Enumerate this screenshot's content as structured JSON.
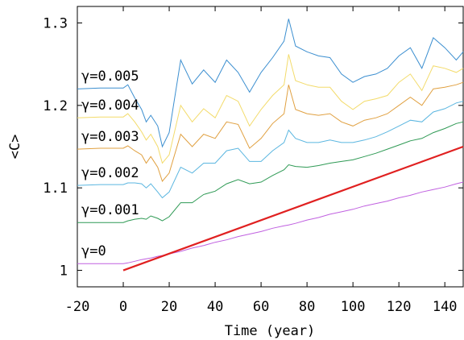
{
  "chart_data": {
    "type": "line",
    "xlabel": "Time (year)",
    "ylabel": "<C>",
    "xlim": [
      -20,
      148
    ],
    "ylim": [
      0.98,
      1.32
    ],
    "x_ticks": [
      -20,
      0,
      20,
      40,
      60,
      80,
      100,
      120,
      140
    ],
    "y_ticks": [
      1,
      1.1,
      1.2,
      1.3
    ],
    "y_tick_labels": [
      "1",
      "1.1",
      "1.2",
      "1.3"
    ],
    "grid": false,
    "legend": "none",
    "x": [
      -20,
      -10,
      0,
      2,
      5,
      8,
      10,
      12,
      15,
      17,
      20,
      25,
      30,
      35,
      40,
      45,
      50,
      55,
      60,
      65,
      70,
      72,
      75,
      80,
      85,
      90,
      95,
      100,
      105,
      110,
      115,
      120,
      125,
      130,
      135,
      140,
      145,
      148
    ],
    "series": [
      {
        "name": "γ=0.005",
        "color": "#3c8fd0",
        "values": [
          1.22,
          1.221,
          1.221,
          1.225,
          1.209,
          1.195,
          1.18,
          1.188,
          1.175,
          1.15,
          1.167,
          1.255,
          1.226,
          1.243,
          1.228,
          1.255,
          1.24,
          1.216,
          1.24,
          1.258,
          1.278,
          1.305,
          1.272,
          1.265,
          1.26,
          1.258,
          1.238,
          1.228,
          1.235,
          1.238,
          1.245,
          1.26,
          1.27,
          1.245,
          1.282,
          1.27,
          1.255,
          1.265
        ]
      },
      {
        "name": "γ=0.004",
        "color": "#f3db6a",
        "values": [
          1.185,
          1.186,
          1.186,
          1.19,
          1.18,
          1.168,
          1.158,
          1.165,
          1.15,
          1.13,
          1.14,
          1.2,
          1.18,
          1.196,
          1.185,
          1.212,
          1.205,
          1.175,
          1.195,
          1.212,
          1.225,
          1.262,
          1.23,
          1.225,
          1.222,
          1.222,
          1.205,
          1.195,
          1.205,
          1.208,
          1.212,
          1.228,
          1.238,
          1.218,
          1.248,
          1.245,
          1.24,
          1.245
        ]
      },
      {
        "name": "γ=0.003",
        "color": "#e0a040",
        "values": [
          1.147,
          1.148,
          1.148,
          1.151,
          1.145,
          1.14,
          1.13,
          1.138,
          1.125,
          1.108,
          1.118,
          1.165,
          1.15,
          1.165,
          1.16,
          1.18,
          1.177,
          1.148,
          1.16,
          1.178,
          1.19,
          1.225,
          1.195,
          1.19,
          1.188,
          1.19,
          1.18,
          1.175,
          1.182,
          1.185,
          1.19,
          1.2,
          1.21,
          1.2,
          1.22,
          1.222,
          1.225,
          1.228
        ]
      },
      {
        "name": "γ=0.002",
        "color": "#5bb6e0",
        "values": [
          1.103,
          1.104,
          1.104,
          1.106,
          1.106,
          1.105,
          1.1,
          1.105,
          1.095,
          1.088,
          1.095,
          1.125,
          1.118,
          1.13,
          1.13,
          1.145,
          1.148,
          1.132,
          1.132,
          1.145,
          1.155,
          1.17,
          1.16,
          1.155,
          1.155,
          1.158,
          1.155,
          1.155,
          1.158,
          1.162,
          1.168,
          1.175,
          1.182,
          1.18,
          1.192,
          1.196,
          1.203,
          1.205
        ]
      },
      {
        "name": "γ=0.001",
        "color": "#2f9a55",
        "values": [
          1.058,
          1.058,
          1.058,
          1.06,
          1.062,
          1.063,
          1.062,
          1.066,
          1.063,
          1.06,
          1.065,
          1.082,
          1.082,
          1.092,
          1.096,
          1.105,
          1.11,
          1.105,
          1.107,
          1.115,
          1.122,
          1.128,
          1.126,
          1.125,
          1.127,
          1.13,
          1.132,
          1.134,
          1.138,
          1.142,
          1.147,
          1.152,
          1.157,
          1.16,
          1.167,
          1.172,
          1.178,
          1.18
        ]
      },
      {
        "name": "γ=0",
        "color": "#c060e0",
        "values": [
          1.008,
          1.008,
          1.008,
          1.009,
          1.011,
          1.013,
          1.014,
          1.015,
          1.017,
          1.018,
          1.02,
          1.023,
          1.027,
          1.03,
          1.034,
          1.037,
          1.041,
          1.044,
          1.047,
          1.051,
          1.054,
          1.055,
          1.057,
          1.061,
          1.064,
          1.068,
          1.071,
          1.074,
          1.078,
          1.081,
          1.084,
          1.088,
          1.091,
          1.095,
          1.098,
          1.101,
          1.105,
          1.107
        ]
      }
    ],
    "extra_line": {
      "color": "#e02020",
      "x": [
        0,
        148
      ],
      "values": [
        1.0,
        1.15
      ]
    },
    "label_positions": [
      {
        "label": "γ=0.005",
        "x": -20,
        "y": 1.226
      },
      {
        "label": "γ=0.004",
        "x": -20,
        "y": 1.191
      },
      {
        "label": "γ=0.003",
        "x": -20,
        "y": 1.153
      },
      {
        "label": "γ=0.002",
        "x": -20,
        "y": 1.109
      },
      {
        "label": "γ=0.001",
        "x": -20,
        "y": 1.064
      },
      {
        "label": "γ=0",
        "x": -20,
        "y": 1.014
      }
    ]
  }
}
